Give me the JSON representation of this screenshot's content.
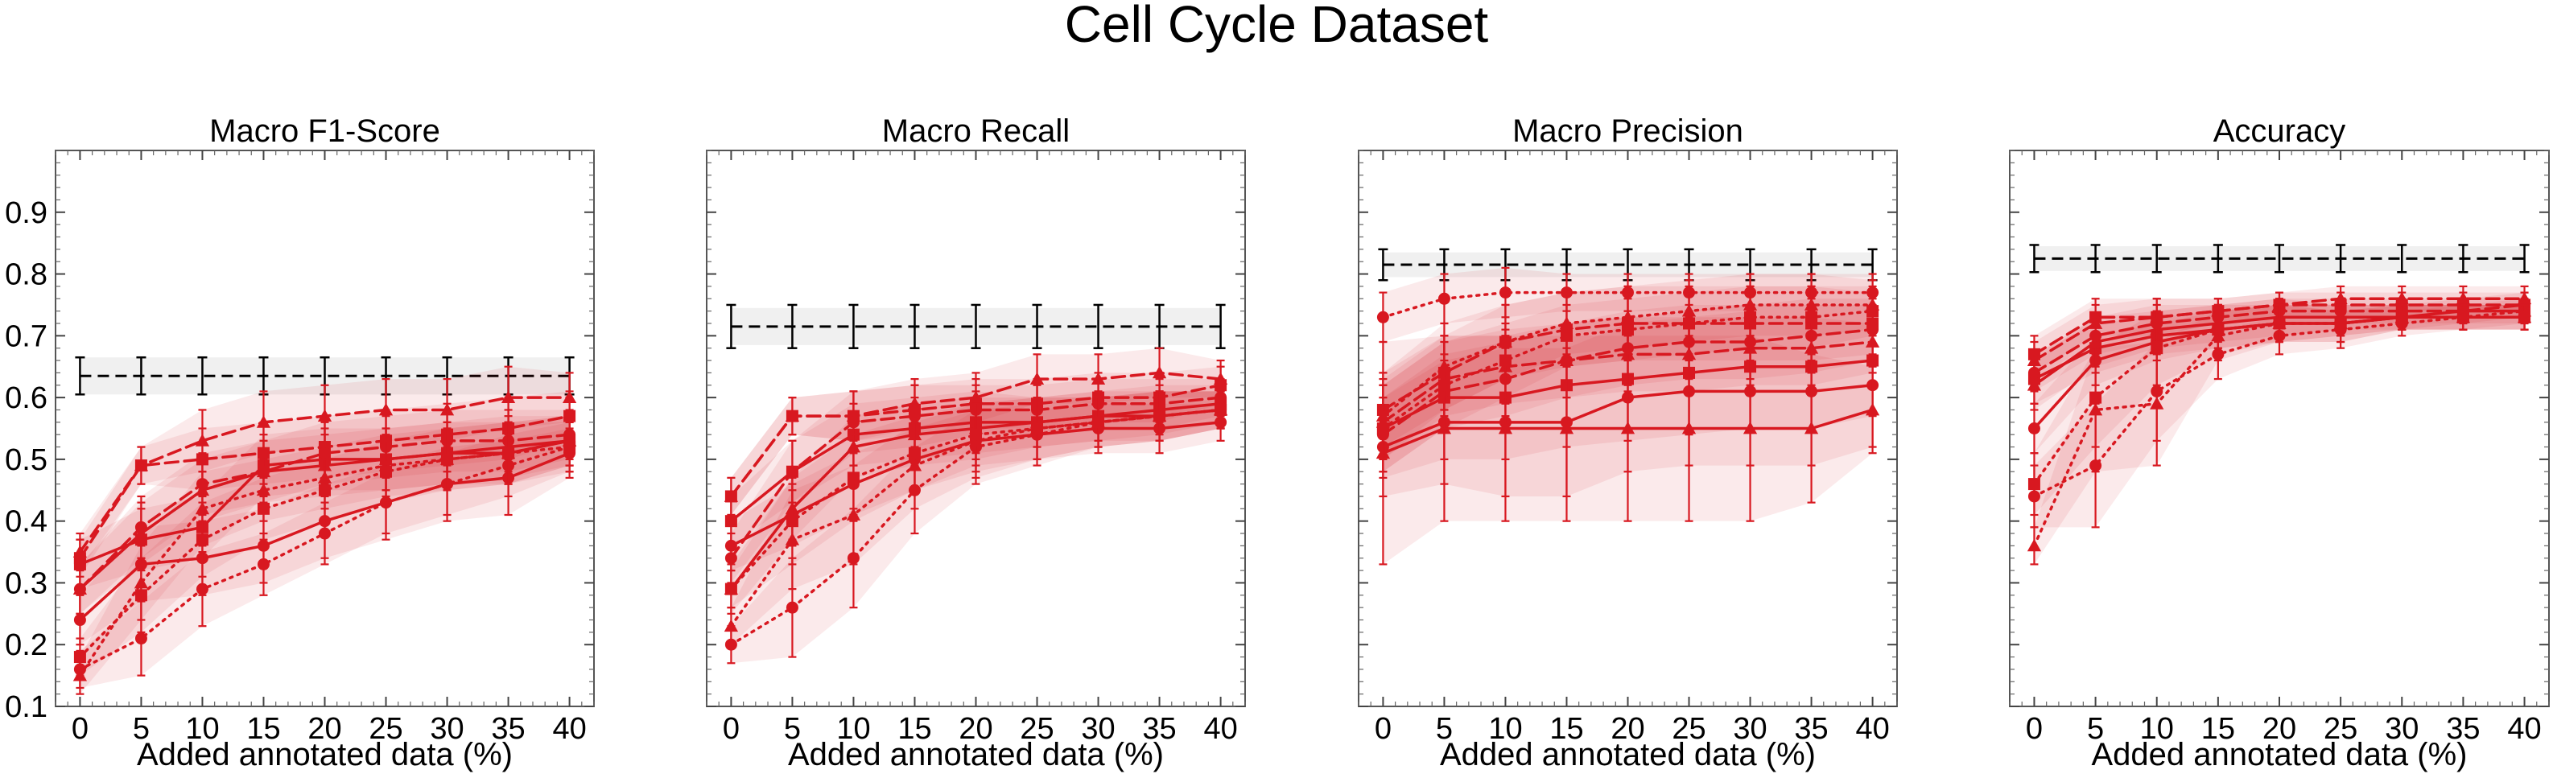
{
  "figure": {
    "title": "Cell Cycle Dataset"
  },
  "chart_data": [
    {
      "type": "line",
      "title": "Macro F1-Score",
      "xlabel": "Added annotated data (%)",
      "ylabel": "",
      "x": [
        0,
        5,
        10,
        15,
        20,
        25,
        30,
        35,
        40
      ],
      "xlim": [
        -2,
        42
      ],
      "ylim": [
        0.1,
        1.0
      ],
      "yticks": [
        0.1,
        0.2,
        0.3,
        0.4,
        0.5,
        0.6,
        0.7,
        0.8,
        0.9
      ],
      "ytick_labels_visible": true,
      "grid": false,
      "baseline": {
        "value": 0.635,
        "err": 0.03,
        "band": 0.03,
        "style": "dashed",
        "color": "#000000"
      },
      "series_color": "#d81820",
      "series": [
        {
          "style": "solid",
          "marker": "circle",
          "values": [
            0.24,
            0.33,
            0.34,
            0.36,
            0.4,
            0.43,
            0.46,
            0.47,
            0.51
          ],
          "err": [
            0.04,
            0.06,
            0.06,
            0.06,
            0.06,
            0.06,
            0.06,
            0.06,
            0.04
          ]
        },
        {
          "style": "solid",
          "marker": "square",
          "values": [
            0.33,
            0.37,
            0.39,
            0.49,
            0.5,
            0.5,
            0.51,
            0.51,
            0.53
          ],
          "err": [
            0.04,
            0.05,
            0.05,
            0.05,
            0.05,
            0.05,
            0.05,
            0.05,
            0.04
          ]
        },
        {
          "style": "solid",
          "marker": "triangle",
          "values": [
            0.29,
            0.38,
            0.45,
            0.48,
            0.49,
            0.5,
            0.51,
            0.52,
            0.53
          ],
          "err": [
            0.04,
            0.05,
            0.05,
            0.05,
            0.05,
            0.05,
            0.05,
            0.05,
            0.04
          ]
        },
        {
          "style": "dashed",
          "marker": "triangle",
          "values": [
            0.35,
            0.49,
            0.53,
            0.56,
            0.57,
            0.58,
            0.58,
            0.6,
            0.6
          ],
          "err": [
            0.03,
            0.03,
            0.05,
            0.05,
            0.05,
            0.05,
            0.05,
            0.05,
            0.04
          ]
        },
        {
          "style": "dashed",
          "marker": "square",
          "values": [
            0.34,
            0.49,
            0.5,
            0.51,
            0.52,
            0.53,
            0.54,
            0.55,
            0.57
          ],
          "err": [
            0.03,
            0.03,
            0.05,
            0.05,
            0.05,
            0.05,
            0.05,
            0.05,
            0.04
          ]
        },
        {
          "style": "dashed",
          "marker": "circle",
          "values": [
            0.29,
            0.39,
            0.46,
            0.48,
            0.51,
            0.52,
            0.53,
            0.53,
            0.54
          ],
          "err": [
            0.04,
            0.05,
            0.05,
            0.05,
            0.05,
            0.05,
            0.05,
            0.05,
            0.04
          ]
        },
        {
          "style": "dotted",
          "marker": "circle",
          "values": [
            0.16,
            0.21,
            0.29,
            0.33,
            0.38,
            0.43,
            0.46,
            0.49,
            0.52
          ],
          "err": [
            0.03,
            0.06,
            0.06,
            0.05,
            0.05,
            0.05,
            0.05,
            0.05,
            0.04
          ]
        },
        {
          "style": "dotted",
          "marker": "triangle",
          "values": [
            0.15,
            0.3,
            0.42,
            0.45,
            0.47,
            0.49,
            0.5,
            0.51,
            0.53
          ],
          "err": [
            0.03,
            0.06,
            0.06,
            0.05,
            0.05,
            0.05,
            0.05,
            0.05,
            0.04
          ]
        },
        {
          "style": "dotted",
          "marker": "square",
          "values": [
            0.18,
            0.28,
            0.37,
            0.42,
            0.45,
            0.48,
            0.5,
            0.51,
            0.52
          ],
          "err": [
            0.03,
            0.06,
            0.06,
            0.05,
            0.05,
            0.05,
            0.05,
            0.05,
            0.04
          ]
        }
      ]
    },
    {
      "type": "line",
      "title": "Macro Recall",
      "xlabel": "Added annotated data (%)",
      "ylabel": "",
      "x": [
        0,
        5,
        10,
        15,
        20,
        25,
        30,
        35,
        40
      ],
      "xlim": [
        -2,
        42
      ],
      "ylim": [
        0.1,
        1.0
      ],
      "yticks": [
        0.1,
        0.2,
        0.3,
        0.4,
        0.5,
        0.6,
        0.7,
        0.8,
        0.9
      ],
      "ytick_labels_visible": false,
      "grid": false,
      "baseline": {
        "value": 0.715,
        "err": 0.035,
        "band": 0.03,
        "style": "dashed",
        "color": "#000000"
      },
      "series_color": "#d81820",
      "series": [
        {
          "style": "solid",
          "marker": "circle",
          "values": [
            0.36,
            0.41,
            0.46,
            0.5,
            0.53,
            0.54,
            0.55,
            0.55,
            0.56
          ],
          "err": [
            0.04,
            0.05,
            0.05,
            0.05,
            0.05,
            0.04,
            0.04,
            0.04,
            0.03
          ]
        },
        {
          "style": "solid",
          "marker": "square",
          "values": [
            0.4,
            0.48,
            0.54,
            0.55,
            0.56,
            0.56,
            0.57,
            0.58,
            0.59
          ],
          "err": [
            0.04,
            0.05,
            0.05,
            0.05,
            0.05,
            0.04,
            0.04,
            0.04,
            0.03
          ]
        },
        {
          "style": "solid",
          "marker": "triangle",
          "values": [
            0.29,
            0.42,
            0.52,
            0.54,
            0.55,
            0.56,
            0.57,
            0.57,
            0.58
          ],
          "err": [
            0.04,
            0.05,
            0.05,
            0.05,
            0.05,
            0.04,
            0.04,
            0.04,
            0.03
          ]
        },
        {
          "style": "dashed",
          "marker": "triangle",
          "values": [
            0.44,
            0.57,
            0.57,
            0.59,
            0.6,
            0.63,
            0.63,
            0.64,
            0.63
          ],
          "err": [
            0.03,
            0.03,
            0.04,
            0.04,
            0.04,
            0.04,
            0.04,
            0.04,
            0.03
          ]
        },
        {
          "style": "dashed",
          "marker": "square",
          "values": [
            0.44,
            0.57,
            0.57,
            0.58,
            0.59,
            0.59,
            0.6,
            0.6,
            0.62
          ],
          "err": [
            0.03,
            0.03,
            0.04,
            0.04,
            0.04,
            0.04,
            0.04,
            0.04,
            0.03
          ]
        },
        {
          "style": "dashed",
          "marker": "circle",
          "values": [
            0.34,
            0.48,
            0.56,
            0.57,
            0.58,
            0.58,
            0.59,
            0.59,
            0.6
          ],
          "err": [
            0.04,
            0.05,
            0.05,
            0.05,
            0.04,
            0.04,
            0.04,
            0.04,
            0.03
          ]
        },
        {
          "style": "dotted",
          "marker": "circle",
          "values": [
            0.2,
            0.26,
            0.34,
            0.45,
            0.52,
            0.54,
            0.56,
            0.57,
            0.58
          ],
          "err": [
            0.03,
            0.08,
            0.08,
            0.07,
            0.06,
            0.05,
            0.04,
            0.04,
            0.03
          ]
        },
        {
          "style": "dotted",
          "marker": "triangle",
          "values": [
            0.23,
            0.37,
            0.41,
            0.49,
            0.53,
            0.55,
            0.56,
            0.57,
            0.58
          ],
          "err": [
            0.03,
            0.08,
            0.08,
            0.07,
            0.06,
            0.05,
            0.04,
            0.04,
            0.03
          ]
        },
        {
          "style": "dotted",
          "marker": "square",
          "values": [
            0.29,
            0.4,
            0.47,
            0.51,
            0.54,
            0.55,
            0.56,
            0.57,
            0.58
          ],
          "err": [
            0.03,
            0.07,
            0.07,
            0.06,
            0.05,
            0.05,
            0.04,
            0.04,
            0.03
          ]
        }
      ]
    },
    {
      "type": "line",
      "title": "Macro Precision",
      "xlabel": "Added annotated data (%)",
      "ylabel": "",
      "x": [
        0,
        5,
        10,
        15,
        20,
        25,
        30,
        35,
        40
      ],
      "xlim": [
        -2,
        42
      ],
      "ylim": [
        0.1,
        1.0
      ],
      "yticks": [
        0.1,
        0.2,
        0.3,
        0.4,
        0.5,
        0.6,
        0.7,
        0.8,
        0.9
      ],
      "ytick_labels_visible": false,
      "grid": false,
      "baseline": {
        "value": 0.815,
        "err": 0.025,
        "band": 0.02,
        "style": "dashed",
        "color": "#000000"
      },
      "series_color": "#d81820",
      "series": [
        {
          "style": "solid",
          "marker": "circle",
          "values": [
            0.52,
            0.56,
            0.56,
            0.56,
            0.6,
            0.61,
            0.61,
            0.61,
            0.62
          ],
          "err": [
            0.08,
            0.1,
            0.12,
            0.12,
            0.12,
            0.12,
            0.12,
            0.12,
            0.1
          ]
        },
        {
          "style": "solid",
          "marker": "square",
          "values": [
            0.55,
            0.6,
            0.6,
            0.62,
            0.63,
            0.64,
            0.65,
            0.65,
            0.66
          ],
          "err": [
            0.08,
            0.1,
            0.1,
            0.1,
            0.1,
            0.1,
            0.1,
            0.1,
            0.09
          ]
        },
        {
          "style": "solid",
          "marker": "triangle",
          "values": [
            0.51,
            0.55,
            0.55,
            0.55,
            0.55,
            0.55,
            0.55,
            0.55,
            0.58
          ],
          "err": [
            0.18,
            0.15,
            0.15,
            0.15,
            0.15,
            0.15,
            0.15,
            0.12,
            0.07
          ]
        },
        {
          "style": "dashed",
          "marker": "triangle",
          "values": [
            0.56,
            0.63,
            0.65,
            0.66,
            0.67,
            0.67,
            0.68,
            0.68,
            0.69
          ],
          "err": [
            0.06,
            0.06,
            0.06,
            0.06,
            0.06,
            0.06,
            0.06,
            0.06,
            0.05
          ]
        },
        {
          "style": "dashed",
          "marker": "square",
          "values": [
            0.58,
            0.64,
            0.69,
            0.71,
            0.72,
            0.72,
            0.72,
            0.72,
            0.72
          ],
          "err": [
            0.06,
            0.06,
            0.06,
            0.06,
            0.06,
            0.06,
            0.06,
            0.06,
            0.05
          ]
        },
        {
          "style": "dashed",
          "marker": "circle",
          "values": [
            0.54,
            0.61,
            0.63,
            0.66,
            0.68,
            0.69,
            0.69,
            0.7,
            0.71
          ],
          "err": [
            0.06,
            0.06,
            0.06,
            0.06,
            0.06,
            0.06,
            0.06,
            0.06,
            0.05
          ]
        },
        {
          "style": "dotted",
          "marker": "circle",
          "values": [
            0.73,
            0.76,
            0.77,
            0.77,
            0.77,
            0.77,
            0.77,
            0.77,
            0.77
          ],
          "err": [
            0.04,
            0.04,
            0.04,
            0.03,
            0.03,
            0.03,
            0.03,
            0.03,
            0.03
          ]
        },
        {
          "style": "dotted",
          "marker": "triangle",
          "values": [
            0.57,
            0.65,
            0.69,
            0.72,
            0.73,
            0.74,
            0.75,
            0.75,
            0.75
          ],
          "err": [
            0.07,
            0.07,
            0.06,
            0.05,
            0.05,
            0.05,
            0.05,
            0.05,
            0.04
          ]
        },
        {
          "style": "dotted",
          "marker": "square",
          "values": [
            0.55,
            0.62,
            0.66,
            0.7,
            0.71,
            0.72,
            0.73,
            0.73,
            0.74
          ],
          "err": [
            0.07,
            0.07,
            0.06,
            0.05,
            0.05,
            0.05,
            0.05,
            0.05,
            0.04
          ]
        }
      ]
    },
    {
      "type": "line",
      "title": "Accuracy",
      "xlabel": "Added annotated data (%)",
      "ylabel": "",
      "x": [
        0,
        5,
        10,
        15,
        20,
        25,
        30,
        35,
        40
      ],
      "xlim": [
        -2,
        42
      ],
      "ylim": [
        0.1,
        1.0
      ],
      "yticks": [
        0.1,
        0.2,
        0.3,
        0.4,
        0.5,
        0.6,
        0.7,
        0.8,
        0.9
      ],
      "ytick_labels_visible": false,
      "grid": false,
      "baseline": {
        "value": 0.825,
        "err": 0.022,
        "band": 0.02,
        "style": "dashed",
        "color": "#000000"
      },
      "series_color": "#d81820",
      "series": [
        {
          "style": "solid",
          "marker": "circle",
          "values": [
            0.55,
            0.66,
            0.69,
            0.71,
            0.72,
            0.72,
            0.73,
            0.73,
            0.73
          ],
          "err": [
            0.04,
            0.04,
            0.03,
            0.03,
            0.03,
            0.02,
            0.02,
            0.02,
            0.02
          ]
        },
        {
          "style": "solid",
          "marker": "square",
          "values": [
            0.63,
            0.68,
            0.7,
            0.71,
            0.72,
            0.72,
            0.73,
            0.73,
            0.73
          ],
          "err": [
            0.04,
            0.04,
            0.03,
            0.03,
            0.03,
            0.02,
            0.02,
            0.02,
            0.02
          ]
        },
        {
          "style": "solid",
          "marker": "triangle",
          "values": [
            0.62,
            0.69,
            0.71,
            0.72,
            0.73,
            0.73,
            0.73,
            0.74,
            0.74
          ],
          "err": [
            0.04,
            0.04,
            0.03,
            0.03,
            0.03,
            0.02,
            0.02,
            0.02,
            0.02
          ]
        },
        {
          "style": "dashed",
          "marker": "triangle",
          "values": [
            0.66,
            0.72,
            0.73,
            0.74,
            0.75,
            0.76,
            0.76,
            0.76,
            0.76
          ],
          "err": [
            0.03,
            0.03,
            0.03,
            0.02,
            0.02,
            0.02,
            0.02,
            0.02,
            0.02
          ]
        },
        {
          "style": "dashed",
          "marker": "square",
          "values": [
            0.67,
            0.73,
            0.73,
            0.74,
            0.75,
            0.75,
            0.75,
            0.75,
            0.75
          ],
          "err": [
            0.03,
            0.03,
            0.03,
            0.02,
            0.02,
            0.02,
            0.02,
            0.02,
            0.02
          ]
        },
        {
          "style": "dashed",
          "marker": "circle",
          "values": [
            0.64,
            0.7,
            0.72,
            0.73,
            0.74,
            0.74,
            0.74,
            0.74,
            0.75
          ],
          "err": [
            0.03,
            0.03,
            0.03,
            0.02,
            0.02,
            0.02,
            0.02,
            0.02,
            0.02
          ]
        },
        {
          "style": "dotted",
          "marker": "circle",
          "values": [
            0.44,
            0.49,
            0.61,
            0.67,
            0.7,
            0.71,
            0.72,
            0.73,
            0.74
          ],
          "err": [
            0.05,
            0.1,
            0.08,
            0.04,
            0.03,
            0.03,
            0.02,
            0.02,
            0.02
          ]
        },
        {
          "style": "dotted",
          "marker": "triangle",
          "values": [
            0.36,
            0.58,
            0.59,
            0.7,
            0.72,
            0.72,
            0.73,
            0.73,
            0.73
          ],
          "err": [
            0.03,
            0.1,
            0.1,
            0.04,
            0.03,
            0.03,
            0.02,
            0.02,
            0.02
          ]
        },
        {
          "style": "dotted",
          "marker": "square",
          "values": [
            0.46,
            0.6,
            0.68,
            0.71,
            0.72,
            0.72,
            0.73,
            0.73,
            0.73
          ],
          "err": [
            0.05,
            0.08,
            0.06,
            0.04,
            0.03,
            0.03,
            0.02,
            0.02,
            0.02
          ]
        }
      ]
    }
  ]
}
